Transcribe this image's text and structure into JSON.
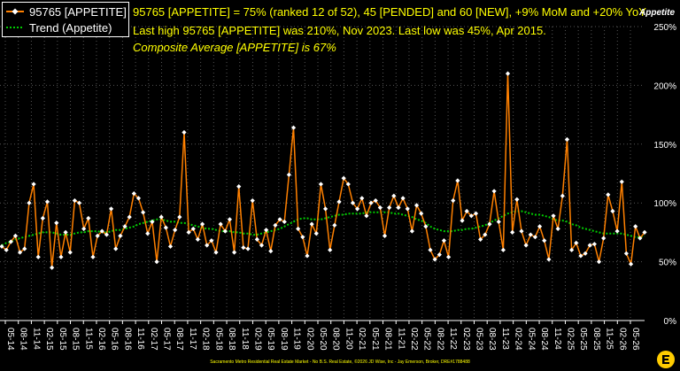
{
  "headline": {
    "line1": "95765 [APPETITE] = 75% (ranked 12 of 52), 45 [PENDED] and 60 [NEW], +9% MoM and +20% YoY.",
    "line2": "Last high 95765 [APPETITE] was 210%, Nov 2023. Last low was 45%, Apr 2015.",
    "line3": "Composite Average [APPETITE] is 67%"
  },
  "brand": "Appetite",
  "footer": "Sacramento Metro Residential Real Estate Market - No B.S. Real Estate, ©2026 JD Wise, Inc - Jay Emerson, Broker, DRE#1788488",
  "colors": {
    "series": "#ff8000",
    "trend": "#00cc00",
    "marker": "#ffffff",
    "text": "#ffff00",
    "axis": "#ffffff",
    "grid": "#555555"
  },
  "chart_data": {
    "type": "line",
    "y_axis": {
      "ticks": [
        "0%",
        "50%",
        "100%",
        "150%",
        "200%",
        "250%"
      ],
      "ylim": [
        0,
        250
      ],
      "position": "right"
    },
    "x_axis": {
      "ticks": [
        "05-14",
        "08-14",
        "11-14",
        "02-15",
        "05-15",
        "08-15",
        "11-15",
        "02-16",
        "05-16",
        "08-16",
        "11-16",
        "02-17",
        "05-17",
        "08-17",
        "11-17",
        "02-18",
        "05-18",
        "08-18",
        "11-18",
        "02-19",
        "05-19",
        "08-19",
        "11-19",
        "02-20",
        "05-20",
        "08-20",
        "11-20",
        "02-21",
        "05-21",
        "08-21",
        "11-21",
        "02-22",
        "05-22",
        "08-22",
        "11-22",
        "02-23",
        "05-23",
        "08-23",
        "11-23",
        "02-24",
        "05-24",
        "08-24",
        "11-24",
        "02-25",
        "05-25",
        "08-25",
        "11-25",
        "02-26",
        "05-26"
      ]
    },
    "grid": true,
    "legend": {
      "placement": "top-left"
    },
    "series": [
      {
        "name": "95765 [APPETITE]",
        "values": [
          63,
          60,
          67,
          72,
          58,
          61,
          100,
          116,
          54,
          87,
          101,
          45,
          83,
          54,
          75,
          58,
          102,
          100,
          78,
          87,
          54,
          72,
          76,
          73,
          95,
          61,
          72,
          80,
          88,
          108,
          104,
          92,
          74,
          84,
          50,
          88,
          79,
          63,
          77,
          88,
          160,
          75,
          78,
          69,
          82,
          64,
          68,
          58,
          82,
          76,
          86,
          58,
          114,
          62,
          61,
          102,
          69,
          64,
          77,
          59,
          81,
          86,
          84,
          124,
          164,
          78,
          71,
          55,
          82,
          74,
          116,
          95,
          60,
          81,
          101,
          121,
          116,
          100,
          95,
          104,
          89,
          100,
          102,
          96,
          72,
          96,
          106,
          96,
          104,
          95,
          76,
          98,
          91,
          80,
          60,
          52,
          56,
          68,
          54,
          102,
          119,
          85,
          93,
          89,
          91,
          69,
          73,
          82,
          110,
          84,
          60,
          210,
          75,
          103,
          76,
          64,
          73,
          71,
          80,
          68,
          52,
          89,
          78,
          106,
          154,
          60,
          66,
          55,
          57,
          64,
          65,
          50,
          70,
          107,
          93,
          76,
          118,
          57,
          48,
          80,
          70,
          75
        ]
      },
      {
        "name": "Trend (Appetite)",
        "values": [
          64,
          66,
          67,
          69,
          70,
          71,
          72,
          73,
          74,
          75,
          75,
          75,
          74,
          73,
          73,
          73,
          74,
          75,
          75,
          76,
          76,
          76,
          75,
          75,
          76,
          77,
          77,
          78,
          79,
          80,
          82,
          83,
          84,
          85,
          86,
          86,
          85,
          84,
          84,
          83,
          83,
          82,
          81,
          80,
          79,
          78,
          78,
          77,
          76,
          76,
          76,
          75,
          75,
          74,
          74,
          73,
          73,
          74,
          75,
          76,
          77,
          78,
          80,
          82,
          84,
          86,
          87,
          87,
          86,
          86,
          86,
          87,
          88,
          89,
          90,
          90,
          91,
          91,
          91,
          91,
          92,
          92,
          92,
          92,
          92,
          92,
          91,
          91,
          90,
          89,
          88,
          86,
          85,
          83,
          80,
          78,
          77,
          76,
          76,
          76,
          77,
          77,
          78,
          78,
          79,
          80,
          81,
          83,
          85,
          87,
          89,
          91,
          92,
          93,
          93,
          92,
          91,
          90,
          90,
          89,
          88,
          86,
          85,
          85,
          84,
          82,
          81,
          79,
          78,
          77,
          76,
          75,
          74,
          74,
          74,
          74,
          74,
          73,
          72,
          71,
          71,
          72
        ]
      }
    ]
  }
}
